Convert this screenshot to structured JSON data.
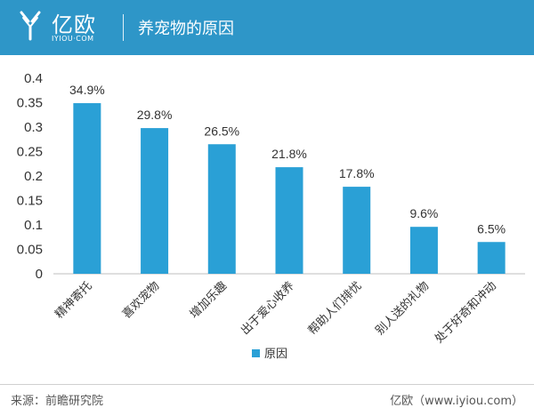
{
  "header": {
    "logo_name": "亿欧",
    "logo_url": "IYIOU·COM",
    "title": "养宠物的原因",
    "bg_color": "#2e96c8"
  },
  "footer": {
    "source": "来源：前瞻研究院",
    "site": "亿欧（www.iyiou.com）"
  },
  "chart_data": {
    "type": "bar",
    "categories": [
      "精神寄托",
      "喜欢宠物",
      "增加乐趣",
      "出于爱心收养",
      "帮助人们排忧",
      "别人送的礼物",
      "处于好奇和冲动"
    ],
    "series": [
      {
        "name": "原因",
        "values": [
          0.349,
          0.298,
          0.265,
          0.218,
          0.178,
          0.096,
          0.065
        ],
        "labels": [
          "34.9%",
          "29.8%",
          "26.5%",
          "21.8%",
          "17.8%",
          "9.6%",
          "6.5%"
        ],
        "color": "#2aa0d6"
      }
    ],
    "yticks": [
      "0",
      "0.05",
      "0.1",
      "0.15",
      "0.2",
      "0.25",
      "0.3",
      "0.35",
      "0.4"
    ],
    "ylim": [
      0,
      0.4
    ],
    "grid": false,
    "legend": "bottom"
  }
}
